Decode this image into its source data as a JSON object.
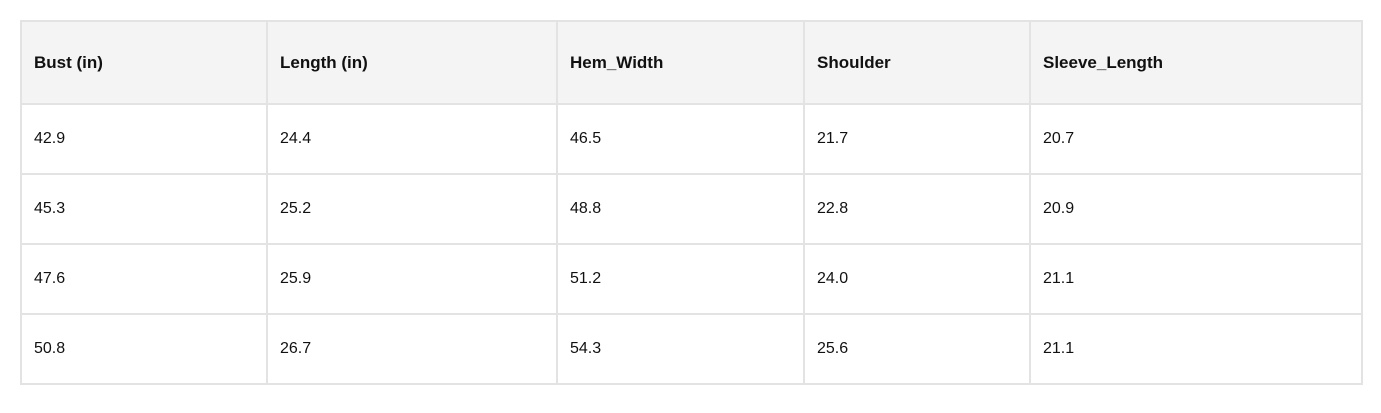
{
  "table": {
    "columns": [
      "Bust (in)",
      "Length (in)",
      "Hem_Width",
      "Shoulder",
      "Sleeve_Length"
    ],
    "rows": [
      [
        "42.9",
        "24.4",
        "46.5",
        "21.7",
        "20.7"
      ],
      [
        "45.3",
        "25.2",
        "48.8",
        "22.8",
        "20.9"
      ],
      [
        "47.6",
        "25.9",
        "51.2",
        "24.0",
        "21.1"
      ],
      [
        "50.8",
        "26.7",
        "54.3",
        "25.6",
        "21.1"
      ]
    ]
  }
}
